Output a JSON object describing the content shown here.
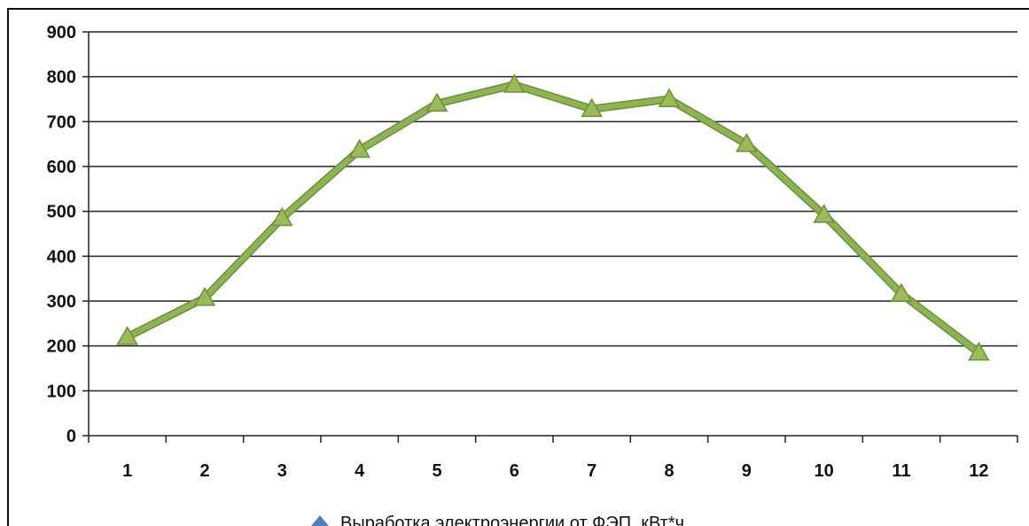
{
  "chart_data": {
    "type": "line",
    "categories": [
      "1",
      "2",
      "3",
      "4",
      "5",
      "6",
      "7",
      "8",
      "9",
      "10",
      "11",
      "12"
    ],
    "series": [
      {
        "name": "Выработка электроэнергии от ФЭП, кВт*ч",
        "values": [
          220,
          307,
          485,
          637,
          740,
          782,
          728,
          750,
          650,
          492,
          316,
          185
        ],
        "color": "#8DB352",
        "marker": "triangle"
      }
    ],
    "yticks": [
      "0",
      "100",
      "200",
      "300",
      "400",
      "500",
      "600",
      "700",
      "800",
      "900"
    ],
    "ylim": [
      0,
      900
    ],
    "grid": true,
    "legend": "bottom",
    "legend_marker_color": "#4F81BD"
  }
}
